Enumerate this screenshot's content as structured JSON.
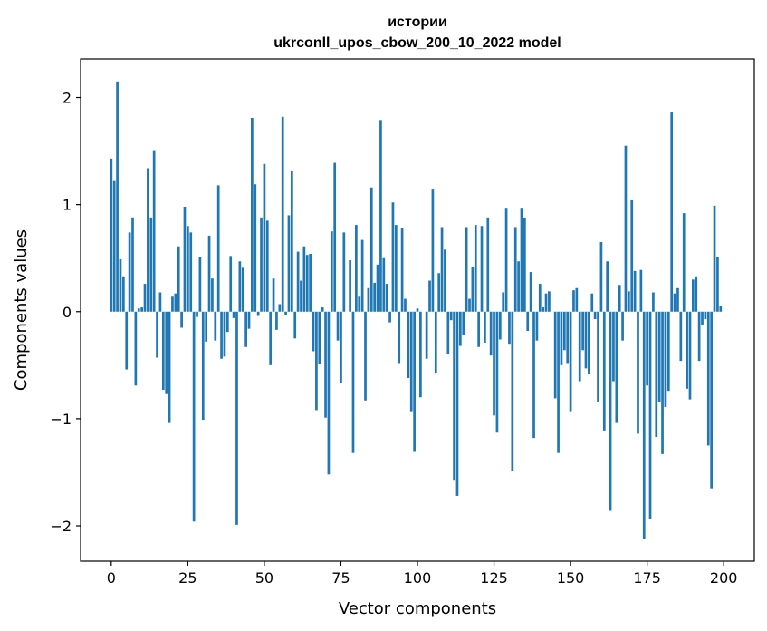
{
  "colors": {
    "bar": "#1f77b4",
    "axis": "#000000",
    "background": "#ffffff"
  },
  "chart_data": {
    "type": "bar",
    "title_line1": "истории",
    "title_line2": "ukrconll_upos_cbow_200_10_2022 model",
    "xlabel": "Vector components",
    "ylabel": "Components values",
    "xlim": [
      -10,
      210
    ],
    "ylim": [
      -2.33,
      2.36
    ],
    "xticks": [
      0,
      25,
      50,
      75,
      100,
      125,
      150,
      175,
      200
    ],
    "xtick_labels": [
      "0",
      "25",
      "50",
      "75",
      "100",
      "125",
      "150",
      "175",
      "200"
    ],
    "yticks": [
      -2,
      -1,
      0,
      1,
      2
    ],
    "ytick_labels": [
      "−2",
      "−1",
      "0",
      "1",
      "2"
    ],
    "grid": false,
    "values": [
      1.43,
      1.22,
      2.15,
      0.49,
      0.33,
      -0.54,
      0.74,
      0.88,
      -0.69,
      0.03,
      0.04,
      0.26,
      1.34,
      0.88,
      1.5,
      -0.43,
      0.18,
      -0.73,
      -0.77,
      -1.04,
      0.14,
      0.17,
      0.61,
      -0.15,
      0.98,
      0.8,
      0.74,
      -1.96,
      -0.05,
      0.51,
      -1.01,
      -0.28,
      0.71,
      0.31,
      -0.27,
      1.18,
      -0.44,
      -0.42,
      -0.19,
      0.52,
      -0.06,
      -1.99,
      0.47,
      0.41,
      -0.33,
      -0.16,
      1.81,
      1.19,
      -0.04,
      0.88,
      1.38,
      0.85,
      -0.5,
      0.31,
      -0.17,
      0.07,
      1.82,
      -0.03,
      0.9,
      1.31,
      -0.25,
      0.56,
      0.29,
      0.61,
      0.53,
      0.54,
      -0.37,
      -0.92,
      -0.49,
      0.04,
      -0.99,
      -1.52,
      0.75,
      1.39,
      -0.27,
      -0.67,
      0.74,
      0.0,
      0.48,
      -1.32,
      0.81,
      0.14,
      0.67,
      -0.83,
      0.22,
      1.16,
      0.27,
      0.44,
      1.79,
      0.5,
      0.26,
      -0.1,
      1.02,
      0.81,
      -0.48,
      0.78,
      0.12,
      -0.62,
      -0.93,
      -1.31,
      0.03,
      -0.8,
      0.0,
      -0.44,
      0.29,
      1.14,
      -0.57,
      0.36,
      0.79,
      0.58,
      -0.4,
      -0.08,
      -1.57,
      -1.72,
      -0.32,
      -0.22,
      0.79,
      0.12,
      0.42,
      0.81,
      -0.33,
      0.8,
      -0.29,
      0.88,
      -0.41,
      -0.97,
      -1.13,
      -0.26,
      0.18,
      0.97,
      -0.3,
      -1.49,
      0.79,
      0.47,
      0.97,
      0.87,
      -0.18,
      0.37,
      -1.18,
      -0.27,
      0.26,
      0.04,
      0.17,
      0.19,
      0.0,
      -0.81,
      -1.32,
      -0.5,
      -0.36,
      -0.48,
      -0.93,
      0.2,
      0.22,
      -0.65,
      -0.36,
      -0.53,
      -0.58,
      0.17,
      -0.07,
      -0.84,
      0.65,
      -1.11,
      0.47,
      -1.86,
      -0.65,
      -1.04,
      0.25,
      -0.27,
      1.55,
      0.19,
      1.04,
      0.38,
      -1.14,
      0.39,
      -2.12,
      -0.69,
      -1.94,
      0.18,
      -1.17,
      -0.84,
      -1.33,
      -0.89,
      -0.74,
      1.86,
      0.17,
      0.22,
      -0.46,
      0.92,
      -0.72,
      -0.82,
      0.3,
      0.33,
      -0.46,
      -0.12,
      -0.07,
      -1.25,
      -1.65,
      0.99,
      0.51,
      0.05
    ]
  }
}
